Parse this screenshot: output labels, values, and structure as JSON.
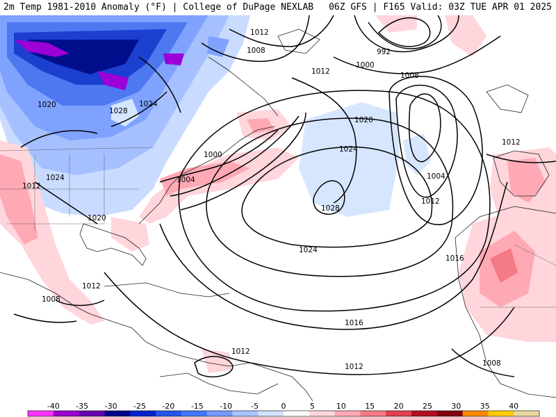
{
  "header": {
    "title_left": "2m Temp 1981-2010 Anomaly (°F) | College of DuPage NEXLAB",
    "title_right": "06Z GFS | F165 Valid: 03Z TUE APR 01 2025"
  },
  "map": {
    "isobar_labels": [
      "1012",
      "1008",
      "992",
      "1000",
      "1008",
      "1012",
      "1020",
      "1028",
      "1024",
      "1020",
      "1024",
      "1000",
      "1004",
      "1004",
      "1012",
      "1024",
      "1012",
      "1028",
      "1020",
      "1024",
      "1016",
      "1012",
      "1008",
      "1012",
      "1016",
      "1012",
      "1012",
      "1008"
    ]
  },
  "colorbar": {
    "ticks": [
      "-40",
      "-35",
      "-30",
      "-25",
      "-20",
      "-15",
      "-10",
      "-5",
      "0",
      "5",
      "10",
      "15",
      "20",
      "25",
      "30",
      "35",
      "40"
    ],
    "colors": [
      "#ff33ff",
      "#9900cc",
      "#6600aa",
      "#000088",
      "#0022cc",
      "#2255ee",
      "#4477ff",
      "#7799ff",
      "#a6c4ff",
      "#d0e2ff",
      "#ffffff",
      "#ffd6dc",
      "#ffa9b5",
      "#f47a86",
      "#e0404c",
      "#b01020",
      "#800010",
      "#ff8800",
      "#ffcc00",
      "#e8d8a0"
    ]
  }
}
